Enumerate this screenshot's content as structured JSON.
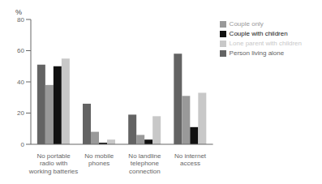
{
  "chart_data": {
    "type": "bar",
    "ylabel": "%",
    "categories": [
      "No portable\nradio with\nworking batteries",
      "No mobile\nphones",
      "No landline\ntelephone\nconnection",
      "No internet\naccess"
    ],
    "series": [
      {
        "name": "Person living alone",
        "color": "#636363",
        "values": [
          51,
          26,
          19,
          58
        ]
      },
      {
        "name": "Couple only",
        "color": "#999999",
        "values": [
          38,
          8,
          6,
          31
        ]
      },
      {
        "name": "Couple with children",
        "color": "#111111",
        "values": [
          50,
          1,
          3,
          11
        ]
      },
      {
        "name": "Lone parent with children",
        "color": "#c8c8c8",
        "values": [
          55,
          3,
          18,
          33
        ]
      }
    ],
    "ylim": [
      0,
      80
    ],
    "yticks": [
      0,
      20,
      40,
      60,
      80
    ],
    "grid": false,
    "legend": "upper right"
  }
}
